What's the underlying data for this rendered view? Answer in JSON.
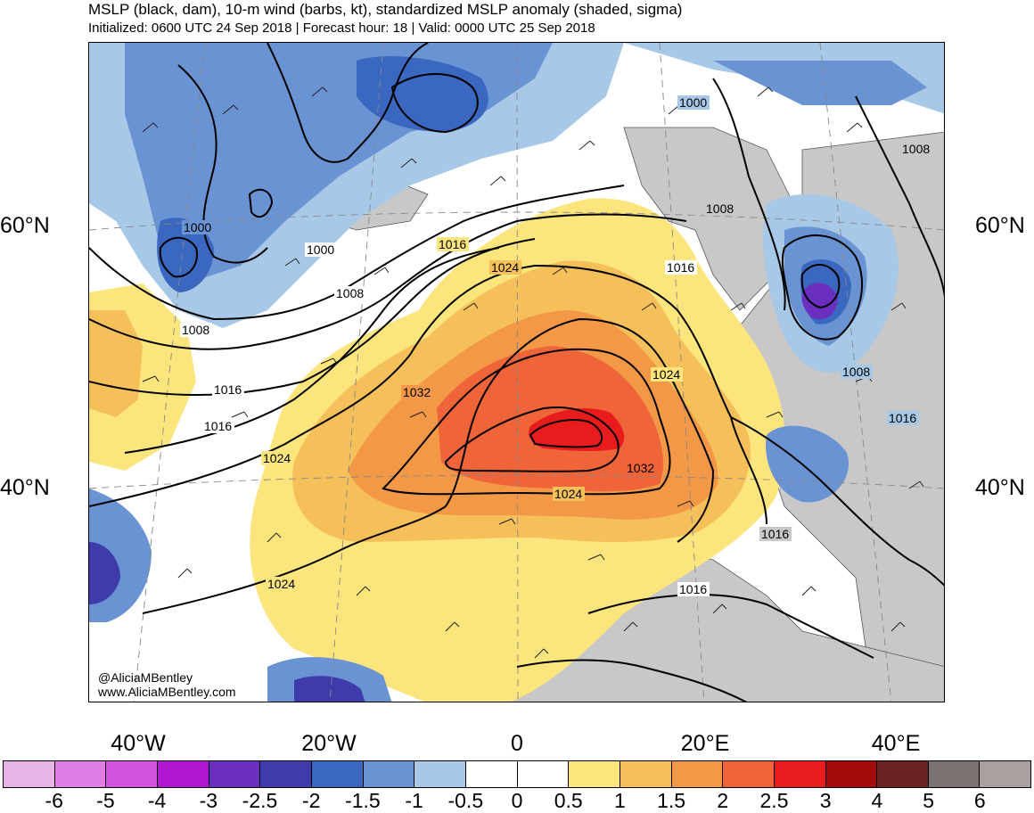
{
  "header": {
    "title": "MSLP (black, dam), 10-m wind (barbs, kt), standardized MSLP anomaly (shaded, sigma)",
    "subtitle": "Initialized: 0600 UTC 24 Sep 2018 | Forecast hour: 18 | Valid: 0000 UTC 25 Sep 2018"
  },
  "map": {
    "lat_labels": [
      "60°N",
      "40°N"
    ],
    "lon_labels": [
      "40°W",
      "20°W",
      "0",
      "20°E",
      "40°E"
    ],
    "contour_labels": [
      "1000",
      "1000",
      "1000",
      "1008",
      "1008",
      "1008",
      "1008",
      "1008",
      "1016",
      "1016",
      "1016",
      "1016",
      "1016",
      "1016",
      "1016",
      "1024",
      "1024",
      "1024",
      "1024",
      "1024",
      "1032",
      "1032"
    ],
    "credit_handle": "@AliciaMBentley",
    "credit_site": "www.AliciaMBentley.com",
    "features": {
      "high_pressure_center": "North Sea / western Europe",
      "low_pressure_centers": [
        "Southern Greenland",
        "Western Russia",
        "North Atlantic (west)",
        "Eastern Atlantic (south)"
      ]
    }
  },
  "colorbar": {
    "labels": [
      "-6",
      "-5",
      "-4",
      "-3",
      "-2.5",
      "-2",
      "-1.5",
      "-1",
      "-0.5",
      "0",
      "0.5",
      "1",
      "1.5",
      "2",
      "2.5",
      "3",
      "4",
      "5",
      "6"
    ],
    "colors": [
      "#e8b4e8",
      "#e07ee6",
      "#d454e0",
      "#b015d0",
      "#6a2fbf",
      "#3f3bab",
      "#3a67bf",
      "#6a93d4",
      "#a7c8e6",
      "#ffffff",
      "#ffffff",
      "#fbe57c",
      "#f5c05a",
      "#f39847",
      "#f0643a",
      "#e81c1c",
      "#a40a0a",
      "#6b2222",
      "#7b7272",
      "#aaa0a0"
    ]
  }
}
